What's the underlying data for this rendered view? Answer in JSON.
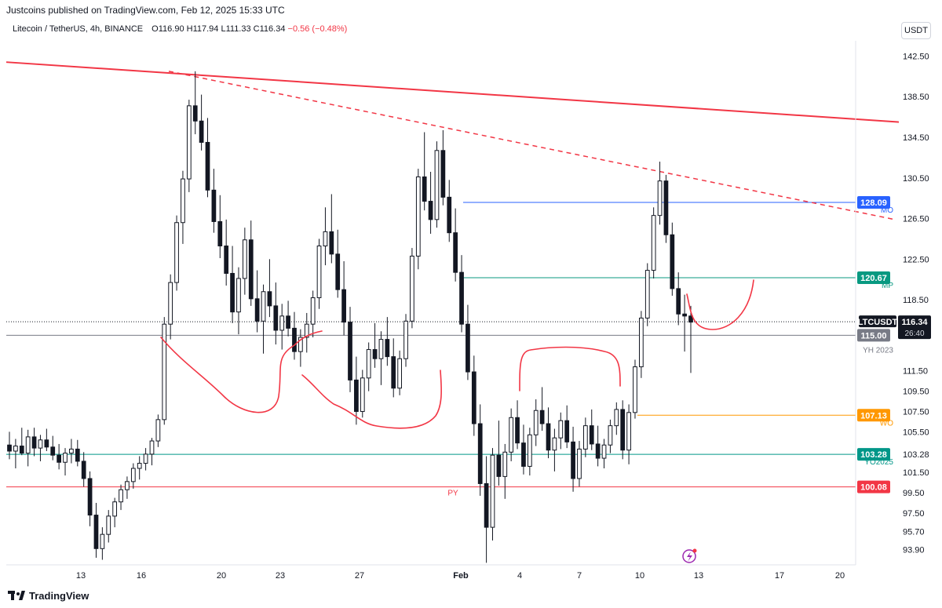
{
  "banner": "Justcoins published on TradingView.com, Feb 12, 2025 15:33 UTC",
  "legend": {
    "symbol": "Litecoin / TetherUS, 4h, BINANCE",
    "o": "O116.90",
    "h": "H117.94",
    "l": "L111.33",
    "c": "C116.34",
    "chg": "−0.56 (−0.48%)"
  },
  "currency": "USDT",
  "brand": "TradingView",
  "chart_data": {
    "type": "candlestick",
    "title": "",
    "ylim": [
      92.4,
      144.0
    ],
    "price_ticks": [
      "142.50",
      "138.50",
      "134.50",
      "130.50",
      "126.50",
      "122.50",
      "118.50",
      "115.00",
      "111.50",
      "109.50",
      "107.50",
      "105.50",
      "103.28",
      "101.50",
      "99.50",
      "97.50",
      "95.70",
      "93.90"
    ],
    "time_ticks": [
      "13",
      "16",
      "20",
      "23",
      "27",
      "Feb",
      "4",
      "7",
      "10",
      "13",
      "17",
      "20"
    ],
    "levels": [
      {
        "label": "MO",
        "value": 128.09,
        "price_label": "128.09",
        "color": "#2962ff"
      },
      {
        "label": "MP",
        "value": 120.67,
        "price_label": "120.67",
        "color": "#089981"
      },
      {
        "label": "YH 2023",
        "value": 115.0,
        "price_label": "115.00",
        "color": "#787b86"
      },
      {
        "label": "WO",
        "value": 107.13,
        "price_label": "107.13",
        "color": "#ff9800"
      },
      {
        "label": "YO2025",
        "value": 103.28,
        "price_label": "103.28",
        "color": "#009688"
      },
      {
        "label": "PY",
        "value": 100.08,
        "price_label": "100.08",
        "color": "#f23645"
      }
    ],
    "last_price": {
      "symbol": "LTCUSDT",
      "price": "116.34",
      "countdown": "26:40"
    },
    "candles_ohlc": [
      [
        104.2,
        105.5,
        102.8,
        103.6
      ],
      [
        103.6,
        104.8,
        101.9,
        104.1
      ],
      [
        104.1,
        105.9,
        103.2,
        103.4
      ],
      [
        103.4,
        105.7,
        102.1,
        105.0
      ],
      [
        105.0,
        105.9,
        103.1,
        103.9
      ],
      [
        103.9,
        105.2,
        102.6,
        104.7
      ],
      [
        104.7,
        105.8,
        103.6,
        104.0
      ],
      [
        104.0,
        105.1,
        102.7,
        103.2
      ],
      [
        103.2,
        104.3,
        101.8,
        102.5
      ],
      [
        102.5,
        103.9,
        101.2,
        103.4
      ],
      [
        103.4,
        104.8,
        102.4,
        103.8
      ],
      [
        103.8,
        104.7,
        102.1,
        102.6
      ],
      [
        102.6,
        103.5,
        100.1,
        100.9
      ],
      [
        100.9,
        101.6,
        96.2,
        97.3
      ],
      [
        97.3,
        98.5,
        93.1,
        94.0
      ],
      [
        94.0,
        96.1,
        92.9,
        95.4
      ],
      [
        95.4,
        97.8,
        94.6,
        97.2
      ],
      [
        97.2,
        99.0,
        96.1,
        98.6
      ],
      [
        98.6,
        100.3,
        97.8,
        99.8
      ],
      [
        99.8,
        101.1,
        98.9,
        100.6
      ],
      [
        100.6,
        102.4,
        99.9,
        101.9
      ],
      [
        101.9,
        103.1,
        100.8,
        102.4
      ],
      [
        102.4,
        103.9,
        101.7,
        103.3
      ],
      [
        103.3,
        104.9,
        102.2,
        104.6
      ],
      [
        104.6,
        107.2,
        104.0,
        106.7
      ],
      [
        106.7,
        116.8,
        106.2,
        116.1
      ],
      [
        116.1,
        121.0,
        114.6,
        120.2
      ],
      [
        120.2,
        126.8,
        119.4,
        126.1
      ],
      [
        126.1,
        131.2,
        124.0,
        130.4
      ],
      [
        130.4,
        138.2,
        129.1,
        137.6
      ],
      [
        137.6,
        141.0,
        134.8,
        136.1
      ],
      [
        136.1,
        138.7,
        133.2,
        134.0
      ],
      [
        134.0,
        136.4,
        128.6,
        129.3
      ],
      [
        129.3,
        131.4,
        125.1,
        126.2
      ],
      [
        126.2,
        128.8,
        122.6,
        123.8
      ],
      [
        123.8,
        126.4,
        119.9,
        121.1
      ],
      [
        121.1,
        123.8,
        116.2,
        117.3
      ],
      [
        117.3,
        121.7,
        115.1,
        120.6
      ],
      [
        120.6,
        125.6,
        119.0,
        124.4
      ],
      [
        124.4,
        126.3,
        117.9,
        118.6
      ],
      [
        118.6,
        121.4,
        115.3,
        116.4
      ],
      [
        116.4,
        120.0,
        113.2,
        119.3
      ],
      [
        119.3,
        122.5,
        116.8,
        117.9
      ],
      [
        117.9,
        120.2,
        114.1,
        115.5
      ],
      [
        115.5,
        118.1,
        113.6,
        116.9
      ],
      [
        116.9,
        118.4,
        114.9,
        115.7
      ],
      [
        115.7,
        117.3,
        112.6,
        113.4
      ],
      [
        113.4,
        115.6,
        111.9,
        114.8
      ],
      [
        114.8,
        117.2,
        113.3,
        116.1
      ],
      [
        116.1,
        119.4,
        114.8,
        118.7
      ],
      [
        118.7,
        124.5,
        117.6,
        123.8
      ],
      [
        123.8,
        127.6,
        121.9,
        125.2
      ],
      [
        125.2,
        128.9,
        122.1,
        123.0
      ],
      [
        123.0,
        125.4,
        118.7,
        119.5
      ],
      [
        119.5,
        122.3,
        115.0,
        116.3
      ],
      [
        116.3,
        117.8,
        109.4,
        110.6
      ],
      [
        110.6,
        112.9,
        106.2,
        107.5
      ],
      [
        107.5,
        111.6,
        106.9,
        110.8
      ],
      [
        110.8,
        114.3,
        109.5,
        113.6
      ],
      [
        113.6,
        116.2,
        111.8,
        112.7
      ],
      [
        112.7,
        115.4,
        110.1,
        114.6
      ],
      [
        114.6,
        116.8,
        112.0,
        112.9
      ],
      [
        112.9,
        114.7,
        108.9,
        109.8
      ],
      [
        109.8,
        113.5,
        109.1,
        112.7
      ],
      [
        112.7,
        117.1,
        111.9,
        116.4
      ],
      [
        116.4,
        123.6,
        115.7,
        122.8
      ],
      [
        122.8,
        131.4,
        121.5,
        130.6
      ],
      [
        130.6,
        135.0,
        127.3,
        128.2
      ],
      [
        128.2,
        131.1,
        125.0,
        126.4
      ],
      [
        126.4,
        134.1,
        125.6,
        133.2
      ],
      [
        133.2,
        135.2,
        127.8,
        128.6
      ],
      [
        128.6,
        130.3,
        124.2,
        125.1
      ],
      [
        125.1,
        127.5,
        120.3,
        121.2
      ],
      [
        121.2,
        122.9,
        115.3,
        116.1
      ],
      [
        116.1,
        118.0,
        110.6,
        111.4
      ],
      [
        111.4,
        113.0,
        105.1,
        106.3
      ],
      [
        106.3,
        108.2,
        99.2,
        100.4
      ],
      [
        100.4,
        103.1,
        92.6,
        96.1
      ],
      [
        96.1,
        103.9,
        94.8,
        103.2
      ],
      [
        103.2,
        106.6,
        100.2,
        101.1
      ],
      [
        101.1,
        104.3,
        98.9,
        103.5
      ],
      [
        103.5,
        107.8,
        102.6,
        106.9
      ],
      [
        106.9,
        108.6,
        103.8,
        104.4
      ],
      [
        104.4,
        106.2,
        101.3,
        102.1
      ],
      [
        102.1,
        105.9,
        101.2,
        105.2
      ],
      [
        105.2,
        108.7,
        104.1,
        107.6
      ],
      [
        107.6,
        109.9,
        105.6,
        106.3
      ],
      [
        106.3,
        107.9,
        102.9,
        103.7
      ],
      [
        103.7,
        105.8,
        101.6,
        104.9
      ],
      [
        104.9,
        107.4,
        103.8,
        106.6
      ],
      [
        106.6,
        108.1,
        103.9,
        104.5
      ],
      [
        104.5,
        106.0,
        99.6,
        100.9
      ],
      [
        100.9,
        104.6,
        100.1,
        103.8
      ],
      [
        103.8,
        106.9,
        103.0,
        106.1
      ],
      [
        106.1,
        107.7,
        103.7,
        104.3
      ],
      [
        104.3,
        106.1,
        102.1,
        102.9
      ],
      [
        102.9,
        104.8,
        101.9,
        104.2
      ],
      [
        104.2,
        106.7,
        103.4,
        106.1
      ],
      [
        106.1,
        108.4,
        105.2,
        107.7
      ],
      [
        107.7,
        108.6,
        102.8,
        103.7
      ],
      [
        103.7,
        108.2,
        102.3,
        107.4
      ],
      [
        107.4,
        112.6,
        106.8,
        111.9
      ],
      [
        111.9,
        117.4,
        110.8,
        116.7
      ],
      [
        116.7,
        122.1,
        115.9,
        121.4
      ],
      [
        121.4,
        127.6,
        120.6,
        126.8
      ],
      [
        126.8,
        132.1,
        125.9,
        130.2
      ],
      [
        130.2,
        130.8,
        124.1,
        124.9
      ],
      [
        124.9,
        126.1,
        118.9,
        119.6
      ],
      [
        119.6,
        121.2,
        116.0,
        117.1
      ],
      [
        117.1,
        119.0,
        113.4,
        116.9
      ],
      [
        116.9,
        117.9,
        111.3,
        116.3
      ]
    ]
  }
}
